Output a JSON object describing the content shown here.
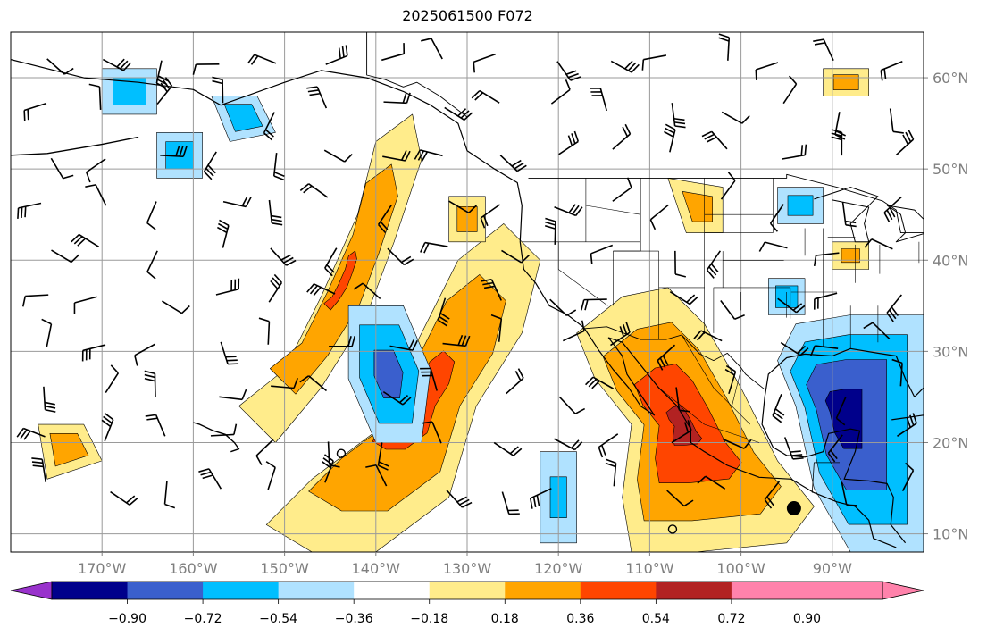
{
  "title": "2025061500 F072",
  "map": {
    "projection": "PlateCarree",
    "lon_range": [
      -180,
      -80
    ],
    "lat_range": [
      8,
      65
    ],
    "lon_ticks": [
      {
        "value": -170,
        "label": "170°W"
      },
      {
        "value": -160,
        "label": "160°W"
      },
      {
        "value": -150,
        "label": "150°W"
      },
      {
        "value": -140,
        "label": "140°W"
      },
      {
        "value": -130,
        "label": "130°W"
      },
      {
        "value": -120,
        "label": "120°W"
      },
      {
        "value": -110,
        "label": "110°W"
      },
      {
        "value": -100,
        "label": "100°W"
      },
      {
        "value": -90,
        "label": "90°W"
      }
    ],
    "lat_ticks": [
      {
        "value": 60,
        "label": "60°N"
      },
      {
        "value": 50,
        "label": "50°N"
      },
      {
        "value": 40,
        "label": "40°N"
      },
      {
        "value": 30,
        "label": "30°N"
      },
      {
        "value": 20,
        "label": "20°N"
      },
      {
        "value": 10,
        "label": "10°N"
      }
    ],
    "gridlines": true,
    "features": [
      "coastlines",
      "country borders",
      "US state borders",
      "wind barbs",
      "filled contours"
    ]
  },
  "colorbar": {
    "levels": [
      "−0.90",
      "−0.72",
      "−0.54",
      "−0.36",
      "−0.18",
      "0.18",
      "0.36",
      "0.54",
      "0.72",
      "0.90"
    ],
    "colors": [
      "#9932cc",
      "#00008b",
      "#3a5fcd",
      "#00bfff",
      "#b0e2ff",
      "#ffffff",
      "#ffec8b",
      "#ffa500",
      "#ff4500",
      "#b22222",
      "#ff82ab"
    ],
    "extend": "both"
  },
  "chart_data": {
    "type": "heatmap",
    "title": "2025061500 F072",
    "xlabel": "",
    "ylabel": "",
    "contour_levels": [
      -0.9,
      -0.72,
      -0.54,
      -0.36,
      -0.18,
      0.18,
      0.36,
      0.54,
      0.72,
      0.9
    ],
    "xlim": [
      -180,
      -80
    ],
    "ylim": [
      8,
      65
    ],
    "grid": true,
    "field_regions": [
      {
        "sign": "positive",
        "max_level": 0.72,
        "lon_range": [
          -112,
          -98
        ],
        "lat_range": [
          10,
          25
        ]
      },
      {
        "sign": "positive",
        "max_level": 0.72,
        "lon_range": [
          -134,
          -126
        ],
        "lat_range": [
          17,
          25
        ]
      },
      {
        "sign": "positive",
        "max_level": 0.54,
        "lon_range": [
          -155,
          -138
        ],
        "lat_range": [
          24,
          50
        ]
      },
      {
        "sign": "positive",
        "max_level": 0.72,
        "lon_range": [
          -115,
          -107
        ],
        "lat_range": [
          25,
          37
        ]
      },
      {
        "sign": "negative",
        "min_level": -0.72,
        "lon_range": [
          -94,
          -80
        ],
        "lat_range": [
          8,
          32
        ]
      },
      {
        "sign": "negative",
        "min_level": -0.54,
        "lon_range": [
          -142,
          -134
        ],
        "lat_range": [
          20,
          35
        ]
      },
      {
        "sign": "negative",
        "min_level": -0.54,
        "lon_range": [
          -157,
          -152
        ],
        "lat_range": [
          53,
          58
        ]
      }
    ]
  }
}
